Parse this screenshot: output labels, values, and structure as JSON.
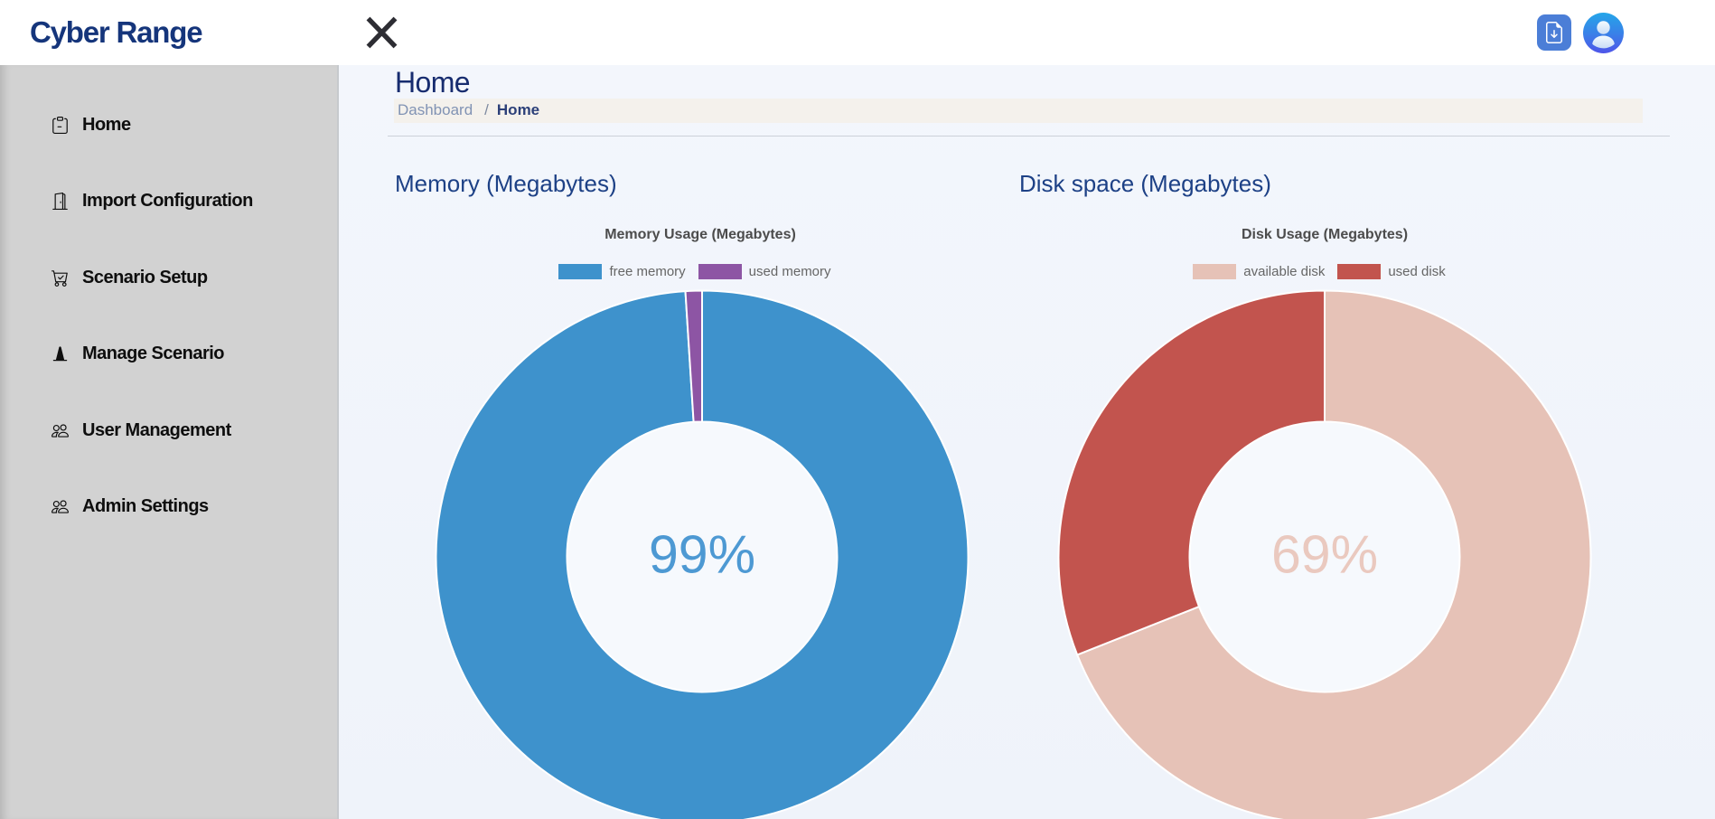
{
  "header": {
    "app_title": "Cyber Range",
    "actions": {
      "close": "close",
      "export_file": "export configuration file",
      "profile": "user profile"
    }
  },
  "sidebar": {
    "items": [
      {
        "label": "Home",
        "icon": "clipboard-icon"
      },
      {
        "label": "Import Configuration",
        "icon": "door-open-icon"
      },
      {
        "label": "Scenario Setup",
        "icon": "cart-check-icon"
      },
      {
        "label": "Manage Scenario",
        "icon": "cone-icon"
      },
      {
        "label": "User Management",
        "icon": "people-icon"
      },
      {
        "label": "Admin Settings",
        "icon": "people-icon"
      }
    ]
  },
  "page": {
    "title": "Home",
    "breadcrumb": {
      "parent": "Dashboard",
      "separator": "/",
      "current": "Home"
    }
  },
  "chart_data": [
    {
      "type": "pie",
      "variant": "doughnut",
      "section_heading": "Memory (Megabytes)",
      "title": "Memory Usage (Megabytes)",
      "labels": [
        "free memory",
        "used memory"
      ],
      "values": [
        99,
        1
      ],
      "unit": "percent of total memory (Megabytes)",
      "colors": [
        "#3e92cc",
        "#8d55a4"
      ],
      "center_label": "99%",
      "center_label_color": "#4d99d3",
      "legend_position": "top",
      "cutout_ratio": 0.5,
      "border_color": "#ffffff"
    },
    {
      "type": "pie",
      "variant": "doughnut",
      "section_heading": "Disk space (Megabytes)",
      "title": "Disk Usage (Megabytes)",
      "labels": [
        "available disk",
        "used disk"
      ],
      "values": [
        69,
        31
      ],
      "unit": "percent of total disk (Megabytes)",
      "colors": [
        "#e6c2b7",
        "#c2544e"
      ],
      "center_label": "69%",
      "center_label_color": "#eac9bf",
      "legend_position": "top",
      "cutout_ratio": 0.5,
      "border_color": "#ffffff"
    }
  ]
}
